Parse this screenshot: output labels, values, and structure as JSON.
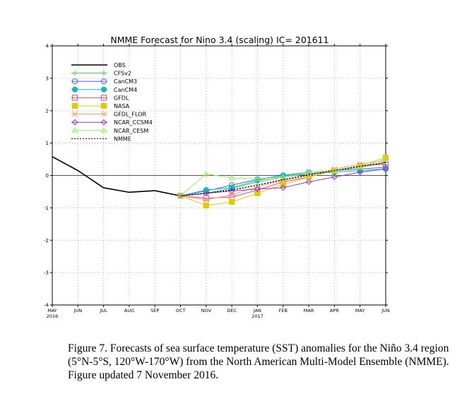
{
  "chart_data": {
    "type": "line",
    "title": "NMME Forecast for Nino 3.4 (scaling) IC= 201611",
    "xlabel": "",
    "ylabel": "",
    "ylim": [
      -4,
      4
    ],
    "yticks": [
      -4,
      -3,
      -2,
      -1,
      0,
      1,
      2,
      3,
      4
    ],
    "grid": true,
    "legend_position": "top-left",
    "x_ticks": [
      {
        "label": "MAY",
        "sub": "2016"
      },
      {
        "label": "JUN",
        "sub": ""
      },
      {
        "label": "JUL",
        "sub": ""
      },
      {
        "label": "AUG",
        "sub": ""
      },
      {
        "label": "SEP",
        "sub": ""
      },
      {
        "label": "OCT",
        "sub": ""
      },
      {
        "label": "NOV",
        "sub": ""
      },
      {
        "label": "DEC",
        "sub": ""
      },
      {
        "label": "JAN",
        "sub": "2017"
      },
      {
        "label": "FEB",
        "sub": ""
      },
      {
        "label": "MAR",
        "sub": ""
      },
      {
        "label": "APR",
        "sub": ""
      },
      {
        "label": "MAY",
        "sub": ""
      },
      {
        "label": "JUN",
        "sub": ""
      }
    ],
    "series": [
      {
        "name": "OBS",
        "color": "#000000",
        "marker": "none",
        "dash": "solid",
        "start": 0,
        "values": [
          0.58,
          0.15,
          -0.38,
          -0.52,
          -0.47,
          -0.63
        ]
      },
      {
        "name": "CFSv2",
        "color": "#44cc44",
        "marker": "plus",
        "dash": "solid",
        "start": 5,
        "values": [
          -0.63,
          -0.55,
          -0.4,
          -0.2,
          -0.05,
          0.05,
          0.15,
          0.25,
          0.4
        ]
      },
      {
        "name": "CanCM3",
        "color": "#4466ff",
        "marker": "circle-open",
        "dash": "solid",
        "start": 5,
        "values": [
          -0.63,
          -0.48,
          -0.3,
          -0.12,
          0.0,
          0.1,
          0.15,
          0.2,
          0.25
        ]
      },
      {
        "name": "CanCM4",
        "color": "#11bbbb",
        "marker": "circle-filled",
        "dash": "solid",
        "start": 5,
        "values": [
          -0.63,
          -0.45,
          -0.38,
          -0.15,
          0.0,
          0.05,
          0.1,
          0.15,
          0.2
        ]
      },
      {
        "name": "GFDL",
        "color": "#ee4488",
        "marker": "square-open",
        "dash": "solid",
        "start": 5,
        "values": [
          -0.63,
          -0.7,
          -0.67,
          -0.45,
          -0.2,
          -0.05,
          0.15,
          0.3,
          0.35
        ]
      },
      {
        "name": "NASA",
        "color": "#ddcc00",
        "marker": "square-filled",
        "dash": "solid",
        "start": 5,
        "values": [
          -0.63,
          -0.93,
          -0.82,
          -0.55,
          -0.28,
          -0.05,
          0.15,
          0.3,
          0.55
        ]
      },
      {
        "name": "GFDL_FLOR",
        "color": "#ff9966",
        "marker": "x",
        "dash": "solid",
        "start": 5,
        "values": [
          -0.63,
          -0.75,
          -0.6,
          -0.35,
          -0.15,
          0.0,
          0.2,
          0.35,
          0.45
        ]
      },
      {
        "name": "NCAR_CCSM4",
        "color": "#9933cc",
        "marker": "diamond-open",
        "dash": "solid",
        "start": 5,
        "values": [
          -0.63,
          -0.55,
          -0.48,
          -0.42,
          -0.38,
          -0.2,
          -0.05,
          0.1,
          0.2
        ]
      },
      {
        "name": "NCAR_CESM",
        "color": "#99ee66",
        "marker": "triangle-open",
        "dash": "solid",
        "start": 5,
        "values": [
          -0.63,
          0.05,
          -0.08,
          -0.1,
          -0.05,
          0.1,
          0.15,
          0.25,
          0.5
        ]
      },
      {
        "name": "NMME",
        "color": "#000000",
        "marker": "none",
        "dash": "dotted",
        "start": 5,
        "values": [
          -0.63,
          -0.55,
          -0.45,
          -0.3,
          -0.13,
          0.02,
          0.15,
          0.28,
          0.4
        ]
      }
    ]
  },
  "caption": {
    "text": "Figure 7. Forecasts of sea surface temperature (SST) anomalies for the Niño 3.4 region (5°N-5°S, 120°W-170°W) from the North American Multi-Model Ensemble (NMME). Figure updated 7 November 2016."
  }
}
